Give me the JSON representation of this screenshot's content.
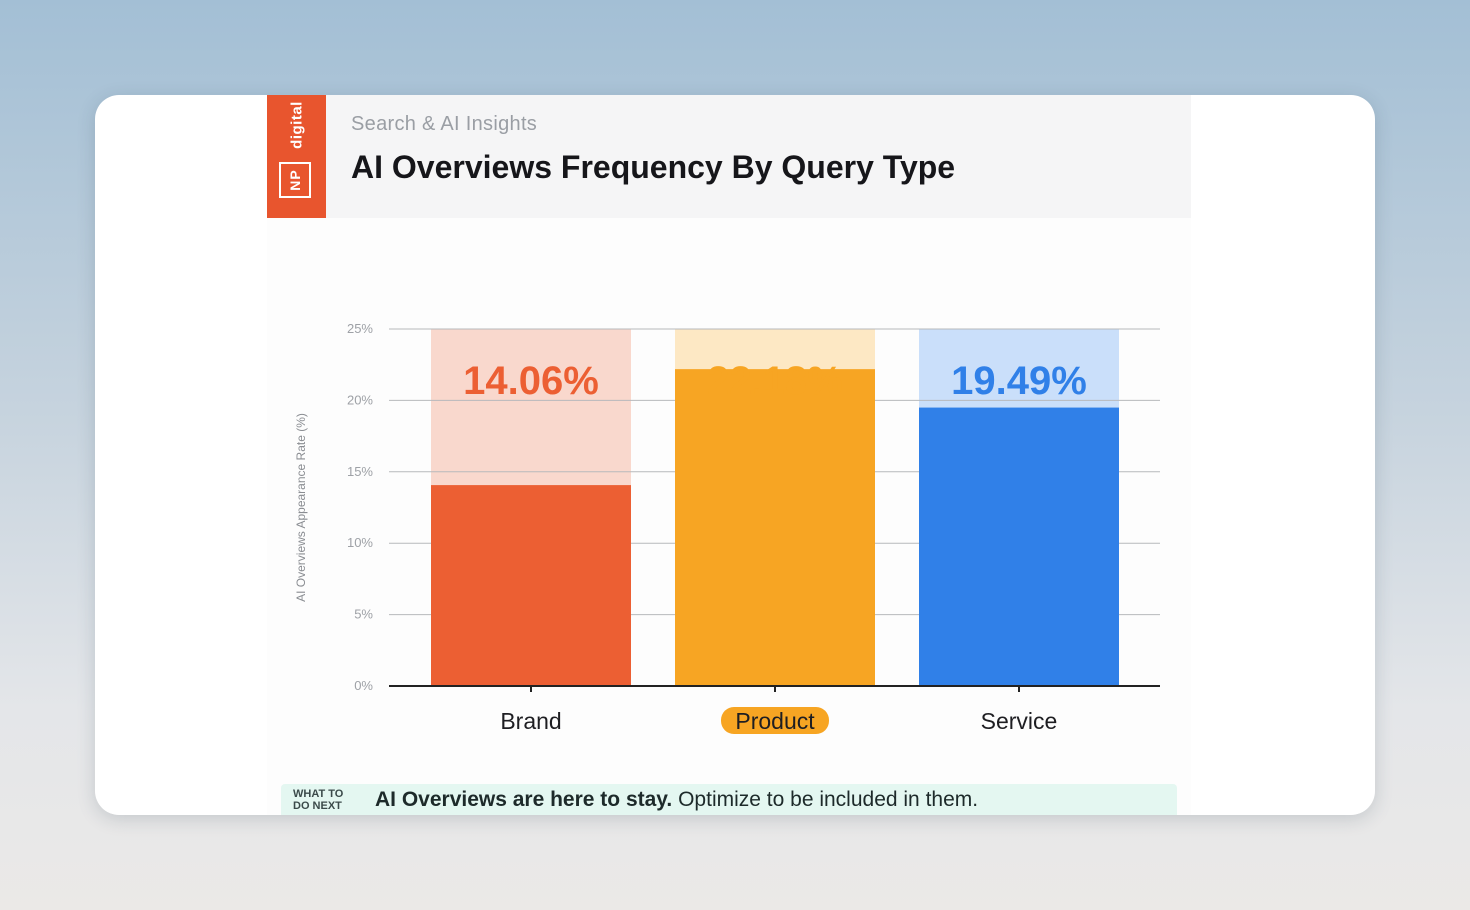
{
  "header": {
    "brand_word": "digital",
    "brand_mark": "NP",
    "subtitle": "Search & AI Insights",
    "title": "AI Overviews Frequency By Query Type"
  },
  "chart_data": {
    "type": "bar",
    "title": "AI Overviews Frequency By Query Type",
    "xlabel": "",
    "ylabel": "AI Overviews Appearance Rate (%)",
    "ylim": [
      0,
      25
    ],
    "yticks": [
      0,
      5,
      10,
      15,
      20,
      25
    ],
    "ytick_labels": [
      "0%",
      "5%",
      "10%",
      "15%",
      "20%",
      "25%"
    ],
    "grid": true,
    "categories": [
      "Brand",
      "Product",
      "Service"
    ],
    "values": [
      14.06,
      22.18,
      19.49
    ],
    "value_labels": [
      "14.06%",
      "22.18%",
      "19.49%"
    ],
    "colors": [
      "#ec5f33",
      "#f7a523",
      "#3080e8"
    ],
    "track_colors": [
      "#f9d8cd",
      "#fde8c4",
      "#cadffa"
    ],
    "highlight_category": "Product",
    "highlight_color": "#f7a523"
  },
  "takeaway": {
    "tag": "WHAT TO DO NEXT",
    "bold": "AI Overviews are here to stay.",
    "text": " Optimize to be included in them."
  }
}
